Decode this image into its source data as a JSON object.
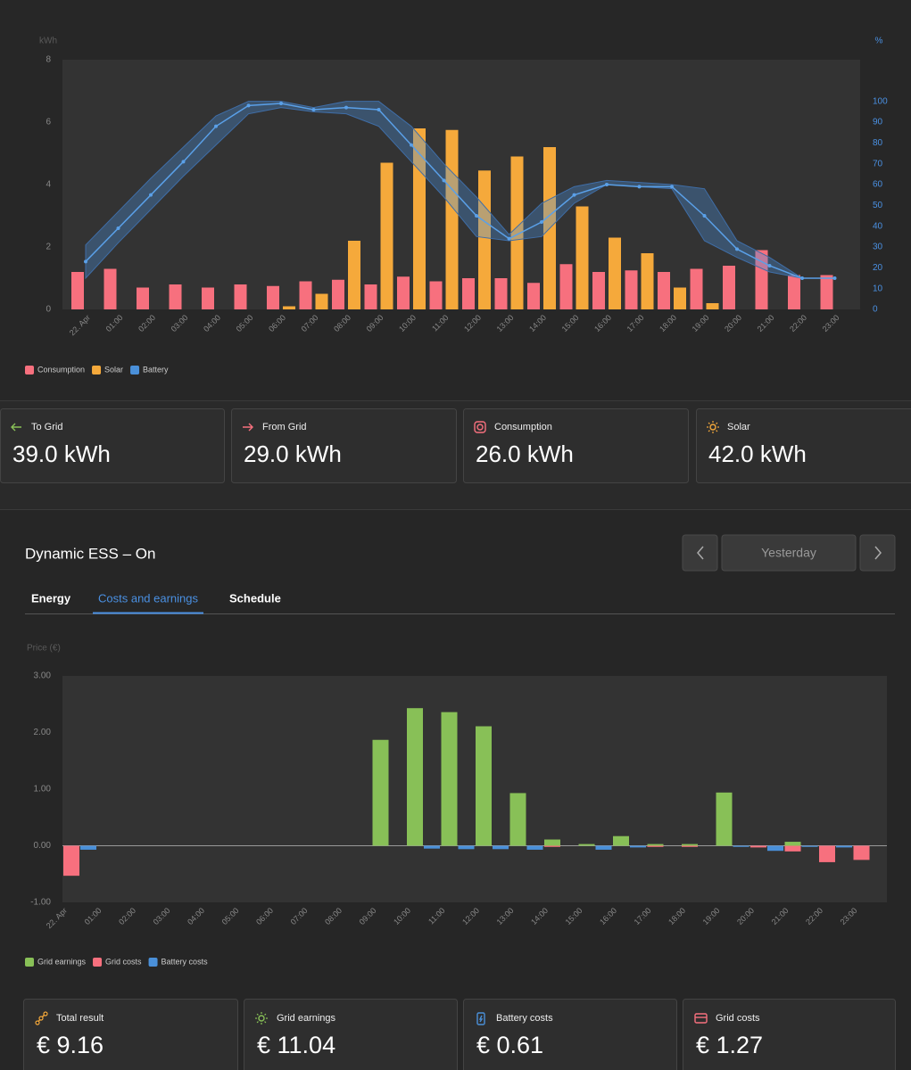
{
  "chart_data": [
    {
      "type": "bar",
      "y_label": "kWh",
      "y2_label": "%",
      "categories": [
        "22. Apr",
        "01:00",
        "02:00",
        "03:00",
        "04:00",
        "05:00",
        "06:00",
        "07:00",
        "08:00",
        "09:00",
        "10:00",
        "11:00",
        "12:00",
        "13:00",
        "14:00",
        "15:00",
        "16:00",
        "17:00",
        "18:00",
        "19:00",
        "20:00",
        "21:00",
        "22:00",
        "23:00"
      ],
      "series": [
        {
          "name": "Consumption",
          "color": "#f7707e",
          "values": [
            1.2,
            1.3,
            0.7,
            0.8,
            0.7,
            0.8,
            0.75,
            0.9,
            0.95,
            0.8,
            1.05,
            0.9,
            1.0,
            1.0,
            0.85,
            1.45,
            1.2,
            1.25,
            1.2,
            1.3,
            1.4,
            1.9,
            1.1,
            1.1
          ]
        },
        {
          "name": "Solar",
          "color": "#f5a93b",
          "values": [
            0,
            0,
            0,
            0,
            0,
            0,
            0.1,
            0.5,
            2.2,
            4.7,
            5.8,
            5.75,
            4.45,
            4.9,
            5.2,
            3.3,
            2.3,
            1.8,
            0.7,
            0.2,
            0,
            0,
            0,
            0
          ]
        },
        {
          "name": "Battery",
          "color": "#4a90d9",
          "axis": "y2",
          "values": [
            23,
            39,
            55,
            71,
            88,
            98,
            99,
            96,
            97,
            96,
            79,
            62,
            45,
            34,
            42,
            55,
            60,
            59,
            59,
            45,
            29,
            21,
            15,
            15
          ],
          "high": [
            31,
            47,
            63,
            78,
            93,
            100,
            100,
            97,
            100,
            100,
            88,
            70,
            54,
            36,
            51,
            59,
            62,
            61,
            60,
            58,
            33,
            25,
            15,
            15
          ],
          "low": [
            15,
            32,
            48,
            64,
            79,
            94,
            97,
            95,
            94,
            88,
            71,
            54,
            35,
            33,
            35,
            51,
            60,
            59,
            58,
            33,
            25,
            18,
            15,
            15
          ]
        }
      ],
      "ylim": [
        0,
        8
      ],
      "yticks": [
        0,
        2,
        4,
        6,
        8
      ],
      "y2lim": [
        0,
        120
      ],
      "y2ticks": [
        0,
        10,
        20,
        30,
        40,
        50,
        60,
        70,
        80,
        90,
        100
      ],
      "legend": "bottom-left"
    },
    {
      "type": "bar",
      "y_label": "Price (€)",
      "categories": [
        "22. Apr",
        "01:00",
        "02:00",
        "03:00",
        "04:00",
        "05:00",
        "06:00",
        "07:00",
        "08:00",
        "09:00",
        "10:00",
        "11:00",
        "12:00",
        "13:00",
        "14:00",
        "15:00",
        "16:00",
        "17:00",
        "18:00",
        "19:00",
        "20:00",
        "21:00",
        "22:00",
        "23:00"
      ],
      "series": [
        {
          "name": "Grid earnings",
          "color": "#88c057",
          "values": [
            0,
            0,
            0,
            0,
            0,
            0,
            0,
            0,
            0,
            1.87,
            2.43,
            2.36,
            2.11,
            0.93,
            0.11,
            0.03,
            0.17,
            0.03,
            0.03,
            0.94,
            0,
            0.07,
            0,
            0
          ]
        },
        {
          "name": "Grid costs",
          "color": "#f7707e",
          "values": [
            -0.53,
            0,
            0,
            0,
            0,
            0,
            0,
            0,
            0,
            0,
            0,
            0,
            0,
            0,
            -0.02,
            0,
            0,
            -0.02,
            -0.02,
            0,
            -0.03,
            -0.1,
            -0.29,
            -0.25
          ]
        },
        {
          "name": "Battery costs",
          "color": "#4a90d9",
          "values": [
            -0.07,
            0,
            0,
            0,
            0,
            0,
            0,
            0,
            0,
            0,
            -0.05,
            -0.06,
            -0.06,
            -0.07,
            0,
            -0.07,
            -0.03,
            0,
            0,
            -0.02,
            -0.09,
            -0.02,
            -0.03,
            0
          ]
        }
      ],
      "ylim": [
        -1,
        3
      ],
      "yticks": [
        {
          "value": -1,
          "label": "-1.00"
        },
        {
          "value": 0,
          "label": "0.00"
        },
        {
          "value": 1,
          "label": "1.00"
        },
        {
          "value": 2,
          "label": "2.00"
        },
        {
          "value": 3,
          "label": "3.00"
        }
      ],
      "legend": "bottom-left"
    }
  ],
  "summary_cards": [
    {
      "label": "To Grid",
      "value": "39.0 kWh"
    },
    {
      "label": "From Grid",
      "value": "29.0 kWh"
    },
    {
      "label": "Consumption",
      "value": "26.0 kWh"
    },
    {
      "label": "Solar",
      "value": "42.0 kWh"
    }
  ],
  "ess": {
    "title": "Dynamic ESS – On",
    "period": "Yesterday",
    "tabs": [
      "Energy",
      "Costs and earnings",
      "Schedule"
    ],
    "active_tab": 1
  },
  "result_cards": [
    {
      "label": "Total result",
      "value": "€ 9.16"
    },
    {
      "label": "Grid earnings",
      "value": "€ 11.04"
    },
    {
      "label": "Battery costs",
      "value": "€ 0.61"
    },
    {
      "label": "Grid costs",
      "value": "€ 1.27"
    }
  ]
}
